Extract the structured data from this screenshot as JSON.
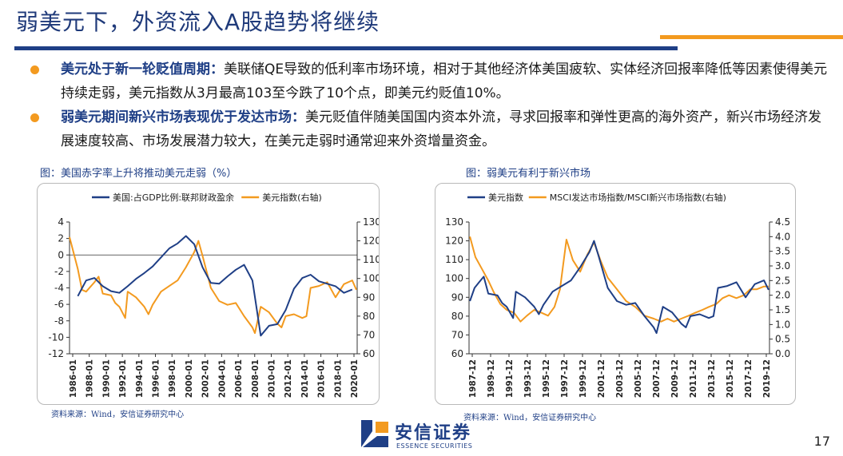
{
  "page": {
    "title": "弱美元下，外资流入A股趋势将继续",
    "page_number": "17",
    "colors": {
      "navy": "#1f3f86",
      "orange": "#f39a1f"
    }
  },
  "bullets": [
    {
      "lead": "美元处于新一轮贬值周期：",
      "text": "美联储QE导致的低利率市场环境，相对于其他经济体美国疲软、实体经济回报率降低等因素使得美元持续走弱，美元指数从3月最高103至今跌了10个点，即美元约贬值10%。"
    },
    {
      "lead": "弱美元期间新兴市场表现优于发达市场：",
      "text": "美元贬值伴随美国国内资本外流，寻求回报率和弹性更高的海外资产，新兴市场经济发展速度较高、市场发展潜力较大，在美元走弱时通常迎来外资增量资金。"
    }
  ],
  "charts": {
    "left_title": "图：美国赤字率上升将推动美元走弱（%）",
    "right_title": "图：弱美元有利于新兴市场",
    "left_source": "资料来源：Wind，安信证券研究中心",
    "right_source": "资料来源：Wind，安信证券研究中心"
  },
  "logo": {
    "name": "安信证券",
    "sub": "ESSENCE SECURITIES"
  },
  "chart_data": [
    {
      "type": "line",
      "title": "",
      "legend_position": "top",
      "grid": false,
      "x_tick_labels": [
        "1986-01",
        "1988-01",
        "1990-01",
        "1992-01",
        "1994-01",
        "1996-01",
        "1998-01",
        "2000-01",
        "2002-01",
        "2004-01",
        "2006-01",
        "2008-01",
        "2010-01",
        "2012-01",
        "2014-01",
        "2016-01",
        "2018-01",
        "2020-01"
      ],
      "x_range": [
        1986.0,
        2020.6
      ],
      "y_left": {
        "ticks": [
          4,
          2,
          0,
          -2,
          -4,
          -6,
          -8,
          -10,
          -12
        ],
        "range": [
          -12,
          4
        ]
      },
      "y_right": {
        "ticks": [
          130,
          120,
          110,
          100,
          90,
          80,
          70,
          60
        ],
        "range": [
          60,
          130
        ]
      },
      "series": [
        {
          "name": "美国:占GDP比例:联邦财政盈余",
          "axis": "left",
          "color": "#1f3f86",
          "x": [
            1987.0,
            1988.0,
            1989.0,
            1990.0,
            1991.0,
            1992.0,
            1993.0,
            1994.0,
            1995.0,
            1996.0,
            1997.0,
            1998.0,
            1999.0,
            2000.0,
            2001.0,
            2002.0,
            2003.0,
            2004.0,
            2005.0,
            2006.0,
            2007.0,
            2008.0,
            2009.0,
            2010.0,
            2011.0,
            2012.0,
            2013.0,
            2014.0,
            2015.0,
            2016.0,
            2017.0,
            2018.0,
            2019.0,
            2020.0
          ],
          "y": [
            -5.0,
            -3.1,
            -2.8,
            -3.8,
            -4.4,
            -4.6,
            -3.8,
            -2.9,
            -2.2,
            -1.4,
            -0.3,
            0.8,
            1.4,
            2.3,
            1.3,
            -1.5,
            -3.4,
            -3.5,
            -2.6,
            -1.8,
            -1.2,
            -3.1,
            -9.8,
            -8.6,
            -8.4,
            -6.7,
            -4.1,
            -2.8,
            -2.4,
            -3.2,
            -3.5,
            -3.8,
            -4.6,
            -4.2
          ]
        },
        {
          "name": "美元指数(右轴)",
          "axis": "right",
          "color": "#f39a1f",
          "x": [
            1986.0,
            1987.0,
            1987.5,
            1988.0,
            1989.0,
            1989.5,
            1990.0,
            1991.0,
            1991.5,
            1992.0,
            1992.7,
            1993.0,
            1994.0,
            1995.0,
            1995.5,
            1996.0,
            1997.0,
            1998.0,
            1999.0,
            2000.0,
            2001.0,
            2001.5,
            2002.0,
            2003.0,
            2004.0,
            2005.0,
            2006.0,
            2007.0,
            2008.0,
            2008.3,
            2009.0,
            2010.0,
            2011.0,
            2011.5,
            2012.0,
            2013.0,
            2014.0,
            2014.5,
            2015.0,
            2016.0,
            2017.0,
            2018.0,
            2019.0,
            2020.0,
            2020.5
          ],
          "y": [
            122,
            105,
            94,
            93,
            98,
            101,
            92,
            91,
            87,
            85,
            79,
            93,
            90,
            85,
            81,
            86,
            93,
            96,
            99,
            106,
            114,
            120,
            112,
            95,
            88,
            86,
            87,
            80,
            74,
            71,
            85,
            82,
            76,
            74,
            80,
            81,
            79,
            80,
            95,
            96,
            98,
            90,
            97,
            99,
            94
          ]
        }
      ]
    },
    {
      "type": "line",
      "title": "",
      "legend_position": "top",
      "grid": false,
      "x_tick_labels": [
        "1987-12",
        "1989-12",
        "1991-12",
        "1993-12",
        "1995-12",
        "1997-12",
        "1999-12",
        "2001-12",
        "2003-12",
        "2005-12",
        "2007-12",
        "2009-12",
        "2011-12",
        "2013-12",
        "2015-12",
        "2017-12",
        "2019-12"
      ],
      "x_range": [
        1987.9,
        2020.6
      ],
      "y_left": {
        "ticks": [
          130,
          120,
          110,
          100,
          90,
          80,
          70,
          60
        ],
        "range": [
          60,
          130
        ]
      },
      "y_right": {
        "ticks": [
          4.5,
          4.0,
          3.5,
          3.0,
          2.5,
          2.0,
          1.5,
          1.0,
          0.5,
          0.0
        ],
        "range": [
          0.0,
          4.5
        ]
      },
      "series": [
        {
          "name": "美元指数",
          "axis": "left",
          "color": "#1f3f86",
          "x": [
            1988.0,
            1988.5,
            1989.0,
            1989.5,
            1990.0,
            1991.0,
            1991.5,
            1992.0,
            1992.7,
            1993.0,
            1994.0,
            1995.0,
            1995.5,
            1996.0,
            1997.0,
            1998.0,
            1999.0,
            2000.0,
            2001.0,
            2001.5,
            2002.0,
            2003.0,
            2004.0,
            2005.0,
            2006.0,
            2007.0,
            2008.0,
            2008.3,
            2009.0,
            2010.0,
            2011.0,
            2011.5,
            2012.0,
            2013.0,
            2014.0,
            2014.5,
            2015.0,
            2016.0,
            2017.0,
            2018.0,
            2019.0,
            2020.0,
            2020.5
          ],
          "y": [
            88,
            95,
            98,
            101,
            92,
            91,
            87,
            85,
            79,
            93,
            90,
            85,
            81,
            86,
            93,
            96,
            99,
            106,
            114,
            120,
            112,
            95,
            88,
            86,
            87,
            80,
            74,
            71,
            85,
            82,
            76,
            74,
            80,
            81,
            79,
            80,
            95,
            96,
            98,
            90,
            97,
            99,
            94
          ]
        },
        {
          "name": "MSCI发达市场指数/MSCI新兴市场指数(右轴)",
          "axis": "right",
          "color": "#f39a1f",
          "x": [
            1988.0,
            1988.6,
            1989.3,
            1990.0,
            1990.6,
            1991.3,
            1992.0,
            1992.8,
            1993.5,
            1994.2,
            1995.0,
            1995.8,
            1996.5,
            1997.2,
            1997.8,
            1998.5,
            1999.2,
            2000.0,
            2000.8,
            2001.5,
            2002.2,
            2003.0,
            2004.0,
            2005.0,
            2006.0,
            2007.0,
            2008.0,
            2008.8,
            2009.5,
            2010.2,
            2011.0,
            2011.8,
            2012.5,
            2013.3,
            2014.0,
            2014.8,
            2015.5,
            2016.2,
            2017.0,
            2017.8,
            2018.5,
            2019.2,
            2020.0,
            2020.5
          ],
          "y": [
            4.0,
            3.3,
            2.9,
            2.5,
            2.1,
            1.7,
            1.5,
            1.4,
            1.1,
            1.3,
            1.5,
            1.4,
            1.3,
            1.6,
            2.2,
            3.9,
            3.2,
            2.8,
            3.4,
            3.8,
            3.2,
            2.6,
            2.2,
            1.8,
            1.6,
            1.3,
            1.2,
            1.1,
            1.2,
            1.1,
            1.2,
            1.3,
            1.4,
            1.5,
            1.6,
            1.7,
            1.9,
            2.0,
            1.9,
            2.0,
            2.2,
            2.2,
            2.3,
            2.3
          ]
        }
      ]
    }
  ]
}
